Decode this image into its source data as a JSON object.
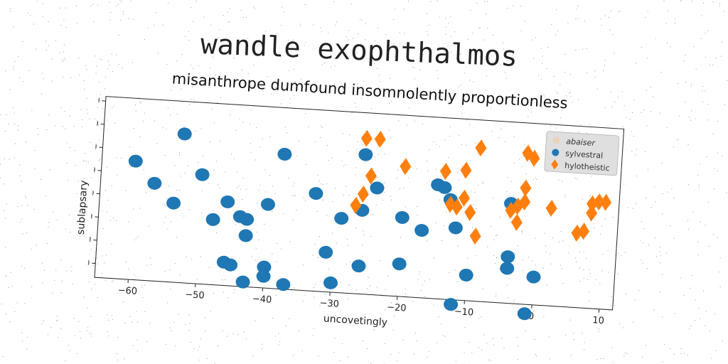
{
  "suptitle": "wandle exophthalmos",
  "chart_data": {
    "type": "scatter",
    "title": "misanthrope dumfound insomnolently proportionless",
    "xlabel": "uncovetingly",
    "ylabel": "sublapsary",
    "xlim": [
      -65,
      12
    ],
    "ylim": [
      -66,
      12
    ],
    "xticks": [
      -60,
      -50,
      -40,
      -30,
      -20,
      -10,
      0,
      10
    ],
    "xtick_labels": [
      "−60",
      "−50",
      "−40",
      "−30",
      "−20",
      "−10",
      "0",
      "10"
    ],
    "yticks": [
      10,
      0,
      -10,
      -20,
      -30,
      -40,
      -50,
      -60
    ],
    "ytick_labels": [
      "10",
      "0",
      "−10",
      "−20",
      "−30",
      "−40",
      "−50",
      "−60"
    ],
    "grid": false,
    "legend_position": "top-right",
    "series": [
      {
        "name": "abaiser",
        "marker": "none",
        "color": "#f5c9a0",
        "points": []
      },
      {
        "name": "sylvestral",
        "marker": "circle",
        "color": "#1f77b4",
        "points": [
          [
            -60,
            -15
          ],
          [
            -57,
            -24
          ],
          [
            -53,
            -2
          ],
          [
            -54,
            -32
          ],
          [
            -50,
            -19
          ],
          [
            -46,
            -30
          ],
          [
            -48,
            -38
          ],
          [
            -44,
            -36
          ],
          [
            -43,
            -37
          ],
          [
            -43,
            -44
          ],
          [
            -46,
            -56
          ],
          [
            -45,
            -57
          ],
          [
            -43,
            -64
          ],
          [
            -40,
            -57
          ],
          [
            -40,
            -30
          ],
          [
            -38,
            -8
          ],
          [
            -40,
            -61
          ],
          [
            -37,
            -64
          ],
          [
            -33,
            -24
          ],
          [
            -31,
            -49
          ],
          [
            -29,
            -34
          ],
          [
            -30,
            -62
          ],
          [
            -26,
            -54
          ],
          [
            -26,
            -6
          ],
          [
            -26,
            -30
          ],
          [
            -24,
            -20
          ],
          [
            -20,
            -52
          ],
          [
            -20,
            -32
          ],
          [
            -17,
            -37
          ],
          [
            -15,
            -17
          ],
          [
            -14,
            -18
          ],
          [
            -13,
            -23
          ],
          [
            -12,
            -35
          ],
          [
            -12,
            -68
          ],
          [
            -10,
            -55
          ],
          [
            -4,
            -23
          ],
          [
            -4,
            -46
          ],
          [
            -4,
            -51
          ],
          [
            -1,
            -70
          ],
          [
            0,
            -54
          ]
        ]
      },
      {
        "name": "hylotheistic",
        "marker": "diamond",
        "color": "#ff7f0e",
        "points": [
          [
            -26,
            1
          ],
          [
            -24,
            1
          ],
          [
            -27,
            -28
          ],
          [
            -26,
            -23
          ],
          [
            -25,
            -15
          ],
          [
            -20,
            -10
          ],
          [
            -14,
            -11
          ],
          [
            -13,
            -25
          ],
          [
            -12,
            -26
          ],
          [
            -11,
            -10
          ],
          [
            -11,
            -22
          ],
          [
            -10,
            -28
          ],
          [
            -9,
            0
          ],
          [
            -9,
            -38
          ],
          [
            -4,
            -26
          ],
          [
            -3,
            -31
          ],
          [
            -2,
            -1
          ],
          [
            -3,
            -24
          ],
          [
            -2,
            -16
          ],
          [
            -2,
            -22
          ],
          [
            -1,
            -3
          ],
          [
            2,
            -24
          ],
          [
            6,
            -34
          ],
          [
            7,
            -33
          ],
          [
            8,
            -21
          ],
          [
            8,
            -25
          ],
          [
            9,
            -20
          ],
          [
            10,
            -20
          ]
        ]
      }
    ]
  }
}
